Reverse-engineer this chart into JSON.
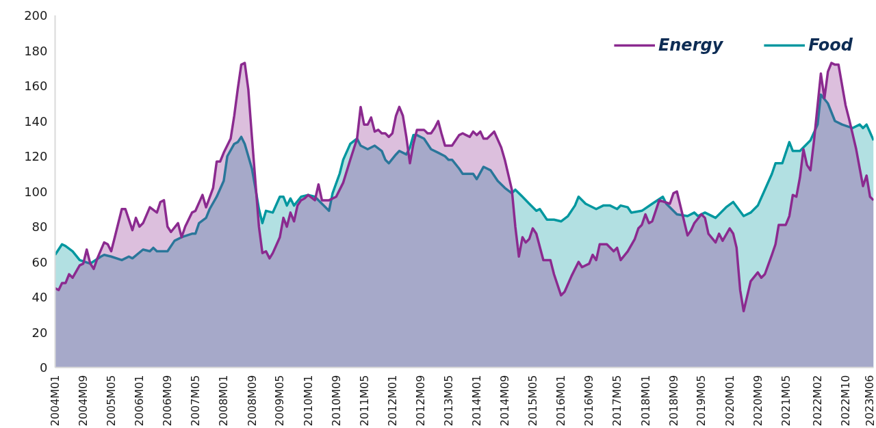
{
  "chart_data": {
    "type": "area",
    "xlim": [
      "2004-01",
      "2023-06"
    ],
    "xticks": [
      {
        "value": "2004-01",
        "label": "2004M01"
      },
      {
        "value": "2004-09",
        "label": "2004M09"
      },
      {
        "value": "2005-05",
        "label": "2005M05"
      },
      {
        "value": "2006-01",
        "label": "2006M01"
      },
      {
        "value": "2006-09",
        "label": "2006M09"
      },
      {
        "value": "2007-05",
        "label": "2007M05"
      },
      {
        "value": "2008-01",
        "label": "2008M01"
      },
      {
        "value": "2008-09",
        "label": "2008M09"
      },
      {
        "value": "2009-05",
        "label": "2009M05"
      },
      {
        "value": "2010-01",
        "label": "2010M01"
      },
      {
        "value": "2010-09",
        "label": "2010M09"
      },
      {
        "value": "2011-05",
        "label": "2011M05"
      },
      {
        "value": "2012-01",
        "label": "2012M01"
      },
      {
        "value": "2012-09",
        "label": "2012M09"
      },
      {
        "value": "2013-05",
        "label": "2013M05"
      },
      {
        "value": "2014-01",
        "label": "2014M01"
      },
      {
        "value": "2014-09",
        "label": "2014M09"
      },
      {
        "value": "2015-05",
        "label": "2015M05"
      },
      {
        "value": "2016-01",
        "label": "2016M01"
      },
      {
        "value": "2016-09",
        "label": "2016M09"
      },
      {
        "value": "2017-05",
        "label": "2017M05"
      },
      {
        "value": "2018-01",
        "label": "2018M01"
      },
      {
        "value": "2018-09",
        "label": "2018M09"
      },
      {
        "value": "2019-05",
        "label": "2019M05"
      },
      {
        "value": "2020-01",
        "label": "2020M01"
      },
      {
        "value": "2020-09",
        "label": "2020M09"
      },
      {
        "value": "2021-05",
        "label": "2021M05"
      },
      {
        "value": "2022-02",
        "label": "2022M02"
      },
      {
        "value": "2022-10",
        "label": "2022M10"
      },
      {
        "value": "2023-06",
        "label": "2023M06"
      }
    ],
    "ylim": [
      0,
      200
    ],
    "yticks": [
      0,
      20,
      40,
      60,
      80,
      100,
      120,
      140,
      160,
      180,
      200
    ],
    "legend": "top right",
    "series": [
      {
        "name": "Food",
        "color": "#00979f",
        "x": [
          "2004-01",
          "2004-03",
          "2004-04",
          "2004-06",
          "2004-08",
          "2004-11",
          "2005-02",
          "2005-03",
          "2005-05",
          "2005-08",
          "2005-10",
          "2005-11",
          "2006-02",
          "2006-04",
          "2006-05",
          "2006-06",
          "2006-09",
          "2006-11",
          "2007-01",
          "2007-04",
          "2007-05",
          "2007-06",
          "2007-08",
          "2007-09",
          "2007-11",
          "2008-01",
          "2008-02",
          "2008-04",
          "2008-05",
          "2008-06",
          "2008-07",
          "2008-09",
          "2008-10",
          "2008-11",
          "2008-12",
          "2009-01",
          "2009-03",
          "2009-05",
          "2009-06",
          "2009-07",
          "2009-08",
          "2009-09",
          "2009-11",
          "2010-01",
          "2010-03",
          "2010-05",
          "2010-07",
          "2010-08",
          "2010-10",
          "2010-11",
          "2011-01",
          "2011-03",
          "2011-04",
          "2011-06",
          "2011-08",
          "2011-10",
          "2011-11",
          "2011-12",
          "2012-02",
          "2012-03",
          "2012-05",
          "2012-06",
          "2012-07",
          "2012-08",
          "2012-10",
          "2012-12",
          "2013-02",
          "2013-04",
          "2013-05",
          "2013-06",
          "2013-08",
          "2013-09",
          "2013-12",
          "2014-01",
          "2014-03",
          "2014-05",
          "2014-07",
          "2014-09",
          "2014-11",
          "2014-12",
          "2015-02",
          "2015-04",
          "2015-06",
          "2015-07",
          "2015-09",
          "2015-11",
          "2016-01",
          "2016-03",
          "2016-05",
          "2016-06",
          "2016-08",
          "2016-11",
          "2017-01",
          "2017-03",
          "2017-05",
          "2017-06",
          "2017-08",
          "2017-09",
          "2017-12",
          "2018-03",
          "2018-06",
          "2018-07",
          "2018-10",
          "2019-01",
          "2019-03",
          "2019-04",
          "2019-06",
          "2019-09",
          "2019-12",
          "2020-02",
          "2020-05",
          "2020-07",
          "2020-09",
          "2020-11",
          "2021-01",
          "2021-02",
          "2021-04",
          "2021-06",
          "2021-07",
          "2021-09",
          "2021-12",
          "2022-02",
          "2022-03",
          "2022-05",
          "2022-07",
          "2022-09",
          "2022-12",
          "2023-02",
          "2023-03",
          "2023-04",
          "2023-06"
        ],
        "values": [
          64,
          70,
          69,
          66,
          61,
          59,
          63,
          64,
          63,
          61,
          63,
          62,
          67,
          66,
          68,
          66,
          66,
          72,
          74,
          76,
          76,
          82,
          85,
          90,
          97,
          106,
          120,
          127,
          128,
          131,
          127,
          113,
          102,
          90,
          82,
          89,
          88,
          97,
          97,
          92,
          96,
          92,
          97,
          98,
          97,
          93,
          89,
          99,
          110,
          118,
          127,
          130,
          126,
          124,
          126,
          123,
          118,
          116,
          121,
          123,
          121,
          125,
          132,
          132,
          130,
          124,
          122,
          120,
          118,
          118,
          113,
          110,
          110,
          107,
          114,
          112,
          106,
          102,
          99,
          101,
          97,
          93,
          89,
          90,
          84,
          84,
          83,
          86,
          92,
          97,
          93,
          90,
          92,
          92,
          90,
          92,
          91,
          88,
          89,
          93,
          97,
          93,
          87,
          86,
          88,
          86,
          88,
          85,
          91,
          94,
          86,
          88,
          92,
          101,
          110,
          116,
          116,
          128,
          123,
          123,
          129,
          138,
          155,
          150,
          140,
          138,
          136,
          138,
          136,
          138,
          129
        ]
      },
      {
        "name": "Energy",
        "color": "#8b2a8f",
        "x": [
          "2004-01",
          "2004-02",
          "2004-03",
          "2004-04",
          "2004-05",
          "2004-06",
          "2004-08",
          "2004-09",
          "2004-10",
          "2004-11",
          "2004-12",
          "2005-01",
          "2005-03",
          "2005-04",
          "2005-05",
          "2005-06",
          "2005-08",
          "2005-09",
          "2005-11",
          "2005-12",
          "2006-01",
          "2006-02",
          "2006-04",
          "2006-06",
          "2006-07",
          "2006-08",
          "2006-09",
          "2006-10",
          "2006-12",
          "2007-01",
          "2007-02",
          "2007-04",
          "2007-05",
          "2007-07",
          "2007-08",
          "2007-10",
          "2007-11",
          "2007-12",
          "2008-01",
          "2008-03",
          "2008-04",
          "2008-05",
          "2008-06",
          "2008-07",
          "2008-08",
          "2008-09",
          "2008-11",
          "2008-12",
          "2009-01",
          "2009-02",
          "2009-03",
          "2009-05",
          "2009-06",
          "2009-07",
          "2009-08",
          "2009-09",
          "2009-10",
          "2009-11",
          "2009-12",
          "2010-01",
          "2010-03",
          "2010-04",
          "2010-05",
          "2010-07",
          "2010-09",
          "2010-11",
          "2011-01",
          "2011-03",
          "2011-04",
          "2011-05",
          "2011-06",
          "2011-07",
          "2011-08",
          "2011-09",
          "2011-10",
          "2011-11",
          "2011-12",
          "2012-01",
          "2012-02",
          "2012-03",
          "2012-04",
          "2012-05",
          "2012-06",
          "2012-07",
          "2012-08",
          "2012-10",
          "2012-11",
          "2012-12",
          "2013-01",
          "2013-02",
          "2013-03",
          "2013-04",
          "2013-06",
          "2013-08",
          "2013-09",
          "2013-10",
          "2013-11",
          "2013-12",
          "2014-01",
          "2014-02",
          "2014-03",
          "2014-04",
          "2014-06",
          "2014-08",
          "2014-09",
          "2014-11",
          "2014-12",
          "2015-01",
          "2015-02",
          "2015-03",
          "2015-04",
          "2015-05",
          "2015-06",
          "2015-08",
          "2015-10",
          "2015-11",
          "2016-01",
          "2016-02",
          "2016-04",
          "2016-06",
          "2016-07",
          "2016-09",
          "2016-10",
          "2016-11",
          "2016-12",
          "2017-02",
          "2017-04",
          "2017-05",
          "2017-06",
          "2017-08",
          "2017-10",
          "2017-11",
          "2017-12",
          "2018-01",
          "2018-02",
          "2018-03",
          "2018-05",
          "2018-08",
          "2018-09",
          "2018-10",
          "2019-01",
          "2019-02",
          "2019-03",
          "2019-05",
          "2019-06",
          "2019-07",
          "2019-09",
          "2019-10",
          "2019-11",
          "2020-01",
          "2020-02",
          "2020-03",
          "2020-04",
          "2020-05",
          "2020-07",
          "2020-09",
          "2020-10",
          "2020-11",
          "2021-01",
          "2021-02",
          "2021-03",
          "2021-05",
          "2021-06",
          "2021-07",
          "2021-08",
          "2021-09",
          "2021-10",
          "2021-11",
          "2021-12",
          "2022-01",
          "2022-03",
          "2022-04",
          "2022-05",
          "2022-06",
          "2022-07",
          "2022-08",
          "2022-10",
          "2022-11",
          "2023-01",
          "2023-03",
          "2023-04",
          "2023-05",
          "2023-06"
        ],
        "values": [
          45,
          44,
          48,
          48,
          53,
          51,
          58,
          59,
          67,
          59,
          56,
          62,
          71,
          70,
          66,
          74,
          90,
          90,
          78,
          85,
          80,
          82,
          91,
          88,
          94,
          95,
          80,
          77,
          82,
          74,
          80,
          88,
          89,
          98,
          91,
          102,
          117,
          117,
          122,
          130,
          143,
          158,
          172,
          173,
          158,
          131,
          80,
          65,
          66,
          62,
          65,
          74,
          85,
          80,
          88,
          83,
          92,
          95,
          96,
          98,
          95,
          104,
          95,
          95,
          97,
          105,
          118,
          130,
          148,
          138,
          138,
          142,
          134,
          135,
          133,
          133,
          131,
          133,
          143,
          148,
          143,
          131,
          116,
          127,
          135,
          135,
          133,
          133,
          136,
          140,
          133,
          126,
          126,
          132,
          133,
          132,
          131,
          134,
          132,
          134,
          130,
          130,
          134,
          125,
          118,
          101,
          80,
          63,
          74,
          71,
          73,
          79,
          76,
          61,
          61,
          53,
          41,
          43,
          52,
          60,
          57,
          59,
          64,
          61,
          70,
          70,
          66,
          68,
          61,
          66,
          73,
          79,
          81,
          87,
          82,
          83,
          95,
          93,
          99,
          100,
          75,
          78,
          82,
          87,
          85,
          76,
          71,
          76,
          72,
          79,
          76,
          68,
          44,
          32,
          49,
          54,
          51,
          53,
          64,
          70,
          81,
          81,
          86,
          98,
          97,
          108,
          124,
          115,
          112,
          129,
          167,
          153,
          168,
          173,
          172,
          172,
          149,
          141,
          124,
          103,
          109,
          97,
          95
        ]
      }
    ]
  }
}
